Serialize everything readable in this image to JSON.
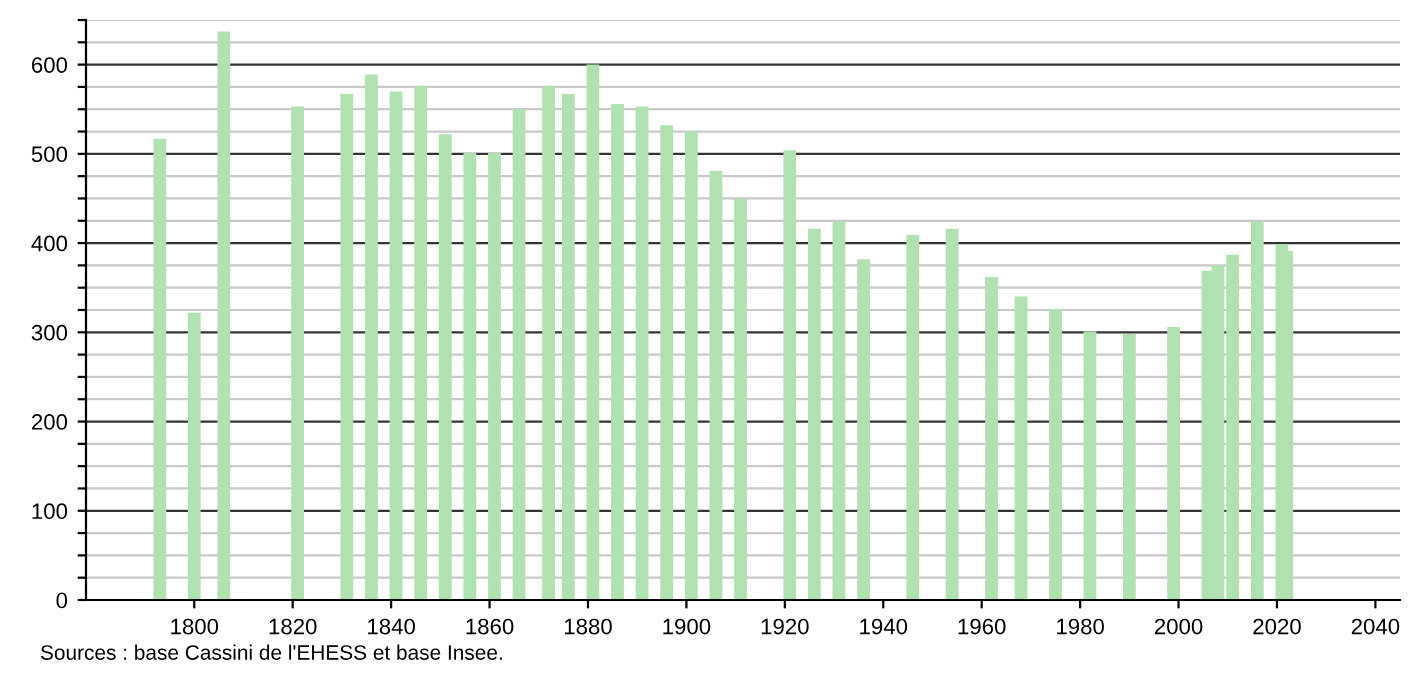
{
  "chart_data": {
    "type": "bar",
    "color": "#b0e2b0",
    "grid": "y",
    "x": [
      1793,
      1800,
      1806,
      1821,
      1831,
      1836,
      1841,
      1846,
      1851,
      1856,
      1861,
      1866,
      1872,
      1876,
      1881,
      1886,
      1891,
      1896,
      1901,
      1906,
      1911,
      1921,
      1926,
      1931,
      1936,
      1946,
      1954,
      1962,
      1968,
      1975,
      1982,
      1990,
      1999,
      2006,
      2008,
      2011,
      2016,
      2021,
      2022
    ],
    "values": [
      517,
      322,
      637,
      553,
      567,
      589,
      570,
      576,
      522,
      501,
      501,
      550,
      576,
      567,
      600,
      556,
      553,
      532,
      525,
      481,
      450,
      504,
      416,
      424,
      382,
      409,
      416,
      362,
      340,
      326,
      301,
      298,
      306,
      369,
      375,
      387,
      424,
      399,
      391
    ],
    "xlim": [
      1778,
      2045
    ],
    "xticks": [
      1800,
      1820,
      1840,
      1860,
      1880,
      1900,
      1920,
      1940,
      1960,
      1980,
      2000,
      2020,
      2040
    ],
    "ylim": [
      0,
      650
    ],
    "yticks": [
      0,
      {
        "value": 25,
        "label": null
      },
      {
        "value": 50,
        "label": null
      },
      {
        "value": 75,
        "label": null
      },
      100,
      {
        "value": 125,
        "label": null
      },
      {
        "value": 150,
        "label": null
      },
      {
        "value": 175,
        "label": null
      },
      200,
      {
        "value": 225,
        "label": null
      },
      {
        "value": 250,
        "label": null
      },
      {
        "value": 275,
        "label": null
      },
      300,
      {
        "value": 325,
        "label": null
      },
      {
        "value": 350,
        "label": null
      },
      {
        "value": 375,
        "label": null
      },
      400,
      {
        "value": 425,
        "label": null
      },
      {
        "value": 450,
        "label": null
      },
      {
        "value": 475,
        "label": null
      },
      500,
      {
        "value": 525,
        "label": null
      },
      {
        "value": 550,
        "label": null
      },
      {
        "value": 575,
        "label": null
      },
      600,
      {
        "value": 625,
        "label": null
      },
      {
        "value": 650,
        "label": null
      }
    ],
    "annotations": [
      "Sources : base Cassini de l'EHESS et base Insee."
    ]
  }
}
